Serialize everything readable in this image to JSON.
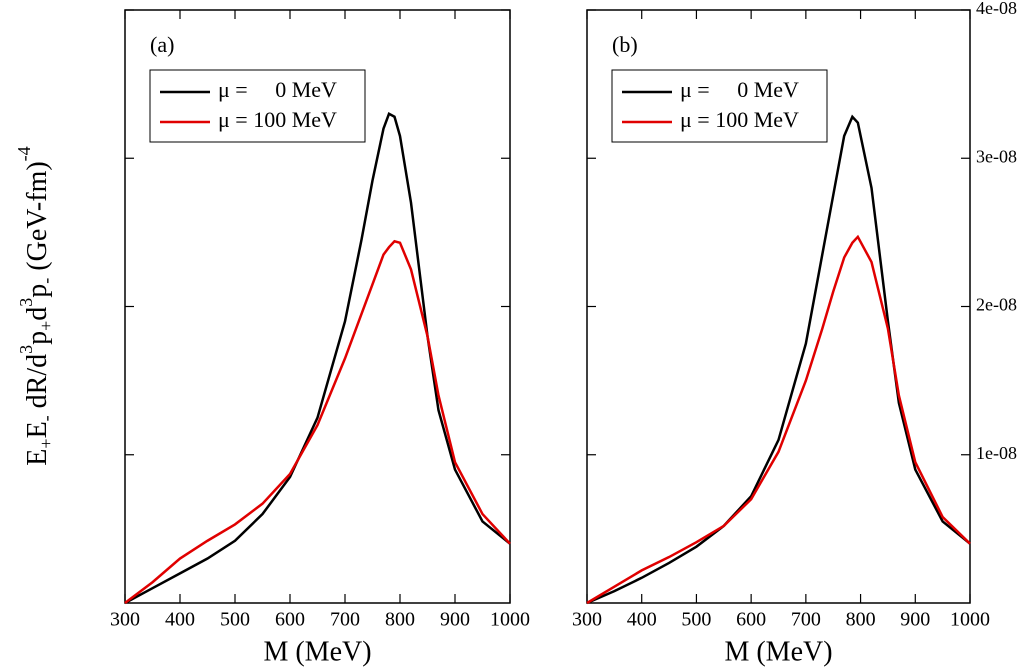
{
  "chart_data": [
    {
      "type": "line",
      "panel_label": "(a)",
      "xlabel": "M (MeV)",
      "ylabel_parts": [
        "E",
        "+",
        "E",
        "-",
        " dR/d",
        "3",
        "p",
        "+",
        "d",
        "3",
        "p",
        "-",
        " (GeV-fm)",
        "-4"
      ],
      "xlim": [
        300,
        1000
      ],
      "xticks": [
        300,
        400,
        500,
        600,
        700,
        800,
        900,
        1000
      ],
      "ylim": [
        0,
        4e-08
      ],
      "yticks": [
        {
          "value": 1e-08,
          "label": "1e-08"
        },
        {
          "value": 2e-08,
          "label": "2e-08"
        },
        {
          "value": 3e-08,
          "label": "3e-08"
        },
        {
          "value": 4e-08,
          "label": "4e-08"
        }
      ],
      "ytick_labels": false,
      "series": [
        {
          "name": "μ =     0 MeV",
          "color": "#000000",
          "x": [
            300,
            350,
            400,
            450,
            500,
            550,
            600,
            650,
            700,
            730,
            750,
            770,
            780,
            790,
            800,
            820,
            850,
            870,
            900,
            950,
            1000
          ],
          "values": [
            0,
            1e-09,
            2e-09,
            3e-09,
            4.2e-09,
            6e-09,
            8.5e-09,
            1.25e-08,
            1.9e-08,
            2.45e-08,
            2.85e-08,
            3.2e-08,
            3.3e-08,
            3.28e-08,
            3.15e-08,
            2.7e-08,
            1.8e-08,
            1.3e-08,
            9e-09,
            5.5e-09,
            4e-09
          ]
        },
        {
          "name": "μ = 100 MeV",
          "color": "#e00000",
          "x": [
            300,
            350,
            400,
            450,
            500,
            550,
            600,
            650,
            700,
            730,
            750,
            770,
            780,
            790,
            800,
            820,
            850,
            870,
            900,
            950,
            1000
          ],
          "values": [
            0,
            1.4e-09,
            3e-09,
            4.2e-09,
            5.3e-09,
            6.7e-09,
            8.7e-09,
            1.2e-08,
            1.65e-08,
            1.95e-08,
            2.15e-08,
            2.35e-08,
            2.4e-08,
            2.44e-08,
            2.43e-08,
            2.25e-08,
            1.8e-08,
            1.4e-08,
            9.5e-09,
            6e-09,
            4e-09
          ]
        }
      ]
    },
    {
      "type": "line",
      "panel_label": "(b)",
      "xlabel": "M (MeV)",
      "xlim": [
        300,
        1000
      ],
      "xticks": [
        300,
        400,
        500,
        600,
        700,
        800,
        900,
        1000
      ],
      "ylim": [
        0,
        4e-08
      ],
      "yticks": [
        {
          "value": 1e-08,
          "label": "1e-08"
        },
        {
          "value": 2e-08,
          "label": "2e-08"
        },
        {
          "value": 3e-08,
          "label": "3e-08"
        },
        {
          "value": 4e-08,
          "label": "4e-08"
        }
      ],
      "ytick_labels": true,
      "series": [
        {
          "name": "μ =     0 MeV",
          "color": "#000000",
          "x": [
            300,
            350,
            400,
            450,
            500,
            550,
            600,
            650,
            700,
            730,
            750,
            770,
            785,
            795,
            820,
            850,
            870,
            900,
            950,
            1000
          ],
          "values": [
            0,
            8e-10,
            1.7e-09,
            2.7e-09,
            3.8e-09,
            5.2e-09,
            7.2e-09,
            1.1e-08,
            1.75e-08,
            2.35e-08,
            2.75e-08,
            3.15e-08,
            3.28e-08,
            3.24e-08,
            2.8e-08,
            1.9e-08,
            1.35e-08,
            9e-09,
            5.5e-09,
            4e-09
          ]
        },
        {
          "name": "μ = 100 MeV",
          "color": "#e00000",
          "x": [
            300,
            350,
            400,
            450,
            500,
            550,
            600,
            650,
            700,
            730,
            750,
            770,
            785,
            795,
            820,
            850,
            870,
            900,
            950,
            1000
          ],
          "values": [
            0,
            1.1e-09,
            2.2e-09,
            3.1e-09,
            4.1e-09,
            5.2e-09,
            7e-09,
            1.02e-08,
            1.5e-08,
            1.85e-08,
            2.1e-08,
            2.33e-08,
            2.43e-08,
            2.47e-08,
            2.3e-08,
            1.85e-08,
            1.4e-08,
            9.5e-09,
            5.8e-09,
            4e-09
          ]
        }
      ]
    }
  ]
}
